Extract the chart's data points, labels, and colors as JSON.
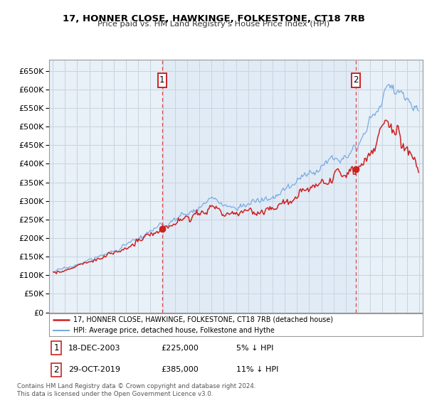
{
  "title": "17, HONNER CLOSE, HAWKINGE, FOLKESTONE, CT18 7RB",
  "subtitle": "Price paid vs. HM Land Registry's House Price Index (HPI)",
  "legend_line1": "17, HONNER CLOSE, HAWKINGE, FOLKESTONE, CT18 7RB (detached house)",
  "legend_line2": "HPI: Average price, detached house, Folkestone and Hythe",
  "sale1_date": "18-DEC-2003",
  "sale1_price": "£225,000",
  "sale1_hpi": "5% ↓ HPI",
  "sale2_date": "29-OCT-2019",
  "sale2_price": "£385,000",
  "sale2_hpi": "11% ↓ HPI",
  "footer": "Contains HM Land Registry data © Crown copyright and database right 2024.\nThis data is licensed under the Open Government Licence v3.0.",
  "hpi_color": "#7aabe0",
  "price_color": "#cc2222",
  "vline_color": "#dd4444",
  "background_color": "#ffffff",
  "plot_bg_color": "#e8f0f8",
  "grid_color": "#c8d4e0",
  "ylim_min": 0,
  "ylim_max": 680000,
  "yticks": [
    0,
    50000,
    100000,
    150000,
    200000,
    250000,
    300000,
    350000,
    400000,
    450000,
    500000,
    550000,
    600000,
    650000
  ],
  "sale1_year": 2003.96,
  "sale1_value": 225000,
  "sale2_year": 2019.83,
  "sale2_value": 385000,
  "xlim_min": 1994.7,
  "xlim_max": 2025.3
}
